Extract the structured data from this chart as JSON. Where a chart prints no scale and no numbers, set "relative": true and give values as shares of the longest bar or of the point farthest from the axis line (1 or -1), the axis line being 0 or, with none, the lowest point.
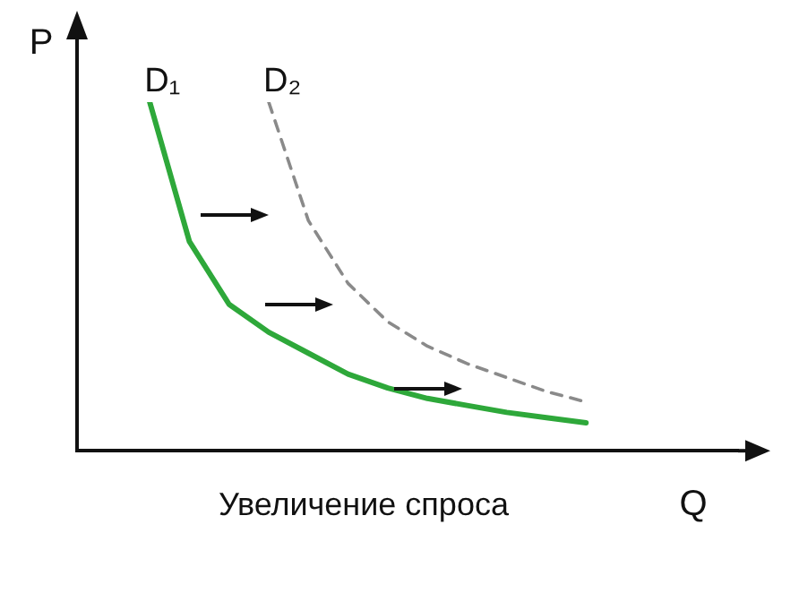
{
  "chart_data": {
    "type": "line",
    "title": "Увеличение спроса",
    "xlabel": "Q",
    "ylabel": "P",
    "relative": true,
    "grid": false,
    "legend": false,
    "marker": "none",
    "categories": [
      null,
      null,
      null,
      null,
      null,
      null,
      null,
      null,
      null,
      null,
      null,
      null
    ],
    "series": [
      {
        "name": "D₁",
        "color": "#2ea83a",
        "line_style": "solid",
        "values": [
          1,
          0.6,
          0.42,
          0.34,
          0.28,
          0.22,
          0.18,
          0.15,
          0.13,
          0.11,
          0.095,
          0.08
        ]
      },
      {
        "name": "D₂",
        "color": "#8a8a8a",
        "line_style": "dashed",
        "values": [
          null,
          null,
          null,
          1,
          0.66,
          0.48,
          0.37,
          0.3,
          0.25,
          0.21,
          0.17,
          0.14
        ]
      }
    ]
  }
}
